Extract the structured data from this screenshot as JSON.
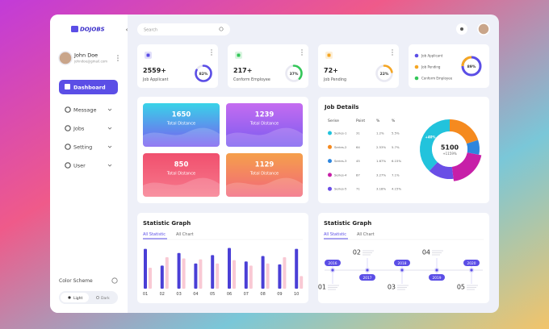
{
  "sidebar": {
    "logo": "DOJOBS",
    "user": {
      "name": "John Doe",
      "email": "johndoe@gmail.com"
    },
    "menu": [
      "Dashboard",
      "Message",
      "Jobs",
      "Setting",
      "User"
    ],
    "color_scheme": {
      "title": "Color Scheme",
      "options": [
        "Light",
        "Dark"
      ]
    }
  },
  "header": {
    "search_placeholder": "Search"
  },
  "stats": [
    {
      "value": "2559+",
      "label": "Job Applicant",
      "percent": {
        "value": 82,
        "label": "82%"
      },
      "color": "#5b4ee6"
    },
    {
      "value": "217+",
      "label": "Conform Employee",
      "percent": {
        "value": 37,
        "label": "37%"
      },
      "color": "#34c759"
    },
    {
      "value": "72+",
      "label": "Job Pending",
      "percent": {
        "value": 22,
        "label": "22%"
      },
      "color": "#f5a623"
    }
  ],
  "summary": {
    "legend": [
      {
        "name": "Job Applicant",
        "color": "#5b4ee6"
      },
      {
        "name": "Job Pending",
        "color": "#f5a623"
      },
      {
        "name": "Conform Employee",
        "color": "#34c759"
      }
    ],
    "percent": {
      "value": 89,
      "label": "89%"
    }
  },
  "distance_cards": [
    {
      "value": "1650",
      "label": "Total Distance"
    },
    {
      "value": "1239",
      "label": "Total Distance"
    },
    {
      "value": "850",
      "label": "Total Distance"
    },
    {
      "value": "1129",
      "label": "Total Distance"
    }
  ],
  "job_details": {
    "title": "Job Details",
    "columns": [
      "Serise",
      "Point",
      "%",
      "%"
    ],
    "rows": [
      [
        "Series-1",
        31,
        "1.2%",
        "5.5%"
      ],
      [
        "Series-2",
        64,
        "2.53%",
        "5.7%"
      ],
      [
        "Series-3",
        45,
        "1.67%",
        "6.15%"
      ],
      [
        "Series-4",
        87,
        "3.27%",
        "7.1%"
      ],
      [
        "Series-5",
        71,
        "3.18%",
        "4.15%"
      ]
    ],
    "row_colors": [
      "#22c3dc",
      "#f58a1f",
      "#2e86de",
      "#c71fa8",
      "#6a4ee6"
    ],
    "donut": {
      "total": "5100",
      "change": "+1159%",
      "callout": "+40%",
      "segments": [
        {
          "value": 20,
          "color": "#f58a1f"
        },
        {
          "value": 8,
          "color": "#2e86de"
        },
        {
          "value": 20,
          "color": "#c71fa8"
        },
        {
          "value": 14,
          "color": "#6a4ee6"
        },
        {
          "value": 38,
          "color": "#22c3dc"
        }
      ]
    }
  },
  "statistic_graph": {
    "title": "Statistic Graph",
    "tabs": [
      "All Statistic",
      "All Chart"
    ],
    "categories": [
      "01",
      "02",
      "03",
      "04",
      "05",
      "06",
      "07",
      "08",
      "09",
      "10"
    ],
    "ylim": [
      0,
      100
    ],
    "series": [
      {
        "color": "#4a3fd6",
        "values": [
          95,
          55,
          85,
          60,
          80,
          97,
          65,
          78,
          58,
          95
        ]
      },
      {
        "color": "#f9c9d4",
        "values": [
          50,
          75,
          72,
          70,
          60,
          68,
          55,
          60,
          75,
          30
        ]
      }
    ]
  },
  "timeline": {
    "title": "Statistic Graph",
    "tabs": [
      "All Statistic",
      "All Chart"
    ],
    "steps": [
      {
        "number": "01",
        "year": "2016"
      },
      {
        "number": "02",
        "year": "2017"
      },
      {
        "number": "03",
        "year": "2018"
      },
      {
        "number": "04",
        "year": "2019"
      },
      {
        "number": "05",
        "year": "2020"
      }
    ]
  }
}
